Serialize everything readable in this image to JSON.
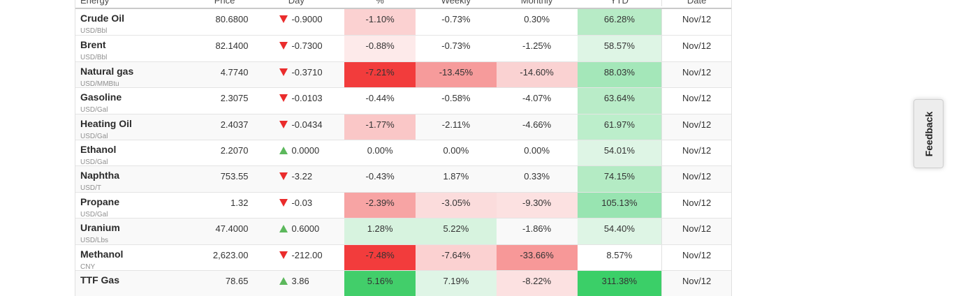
{
  "table": {
    "category": "Energy",
    "columns": [
      "Energy",
      "Price",
      "Day",
      "%",
      "Weekly",
      "Monthly",
      "YTD",
      "Date"
    ],
    "rows": [
      {
        "name": "Crude Oil",
        "unit": "USD/Bbl",
        "price": "80.6800",
        "dir": "down",
        "change": "-0.9000",
        "pct": "-1.10%",
        "weekly": "-0.73%",
        "monthly": "0.30%",
        "ytd": "66.28%",
        "date": "Nov/12",
        "bg": {
          "pct": "#fbd1d1",
          "ytd": "#b7ebc6"
        }
      },
      {
        "name": "Brent",
        "unit": "USD/Bbl",
        "price": "82.1400",
        "dir": "down",
        "change": "-0.7300",
        "pct": "-0.88%",
        "weekly": "-0.73%",
        "monthly": "-1.25%",
        "ytd": "58.57%",
        "date": "Nov/12",
        "bg": {
          "pct": "#fdeaea",
          "ytd": "#def5e5"
        }
      },
      {
        "name": "Natural gas",
        "unit": "USD/MMBtu",
        "price": "4.7740",
        "dir": "down",
        "change": "-0.3710",
        "pct": "-7.21%",
        "weekly": "-13.45%",
        "monthly": "-14.60%",
        "ytd": "88.03%",
        "date": "Nov/12",
        "bg": {
          "pct": "#f23c3c",
          "weekly": "#f69b9b",
          "monthly": "#fad2d2",
          "ytd": "#a4e7b9"
        }
      },
      {
        "name": "Gasoline",
        "unit": "USD/Gal",
        "price": "2.3075",
        "dir": "down",
        "change": "-0.0103",
        "pct": "-0.44%",
        "weekly": "-0.58%",
        "monthly": "-4.07%",
        "ytd": "63.64%",
        "date": "Nov/12",
        "bg": {
          "ytd": "#b9ecc8"
        }
      },
      {
        "name": "Heating Oil",
        "unit": "USD/Gal",
        "price": "2.4037",
        "dir": "down",
        "change": "-0.0434",
        "pct": "-1.77%",
        "weekly": "-2.11%",
        "monthly": "-4.66%",
        "ytd": "61.97%",
        "date": "Nov/12",
        "bg": {
          "pct": "#fac7c7",
          "ytd": "#bceecb"
        }
      },
      {
        "name": "Ethanol",
        "unit": "USD/Gal",
        "price": "2.2070",
        "dir": "up",
        "change": "0.0000",
        "pct": "0.00%",
        "weekly": "0.00%",
        "monthly": "0.00%",
        "ytd": "54.01%",
        "date": "Nov/12",
        "bg": {
          "ytd": "#def5e5"
        }
      },
      {
        "name": "Naphtha",
        "unit": "USD/T",
        "price": "753.55",
        "dir": "down",
        "change": "-3.22",
        "pct": "-0.43%",
        "weekly": "1.87%",
        "monthly": "0.33%",
        "ytd": "74.15%",
        "date": "Nov/12",
        "bg": {
          "ytd": "#b4ebc4"
        }
      },
      {
        "name": "Propane",
        "unit": "USD/Gal",
        "price": "1.32",
        "dir": "down",
        "change": "-0.03",
        "pct": "-2.39%",
        "weekly": "-3.05%",
        "monthly": "-9.30%",
        "ytd": "105.13%",
        "date": "Nov/12",
        "bg": {
          "pct": "#f7a4a4",
          "weekly": "#fbdcdc",
          "monthly": "#fce1e1",
          "ytd": "#98e4b1"
        }
      },
      {
        "name": "Uranium",
        "unit": "USD/Lbs",
        "price": "47.4000",
        "dir": "up",
        "change": "0.6000",
        "pct": "1.28%",
        "weekly": "5.22%",
        "monthly": "-1.86%",
        "ytd": "54.40%",
        "date": "Nov/12",
        "bg": {
          "pct": "#d7f3df",
          "weekly": "#d7f3df",
          "ytd": "#def5e5"
        }
      },
      {
        "name": "Methanol",
        "unit": "CNY",
        "price": "2,623.00",
        "dir": "down",
        "change": "-212.00",
        "pct": "-7.48%",
        "weekly": "-7.64%",
        "monthly": "-33.66%",
        "ytd": "8.57%",
        "date": "Nov/12",
        "bg": {
          "pct": "#f23c3c",
          "weekly": "#fbd1d1",
          "monthly": "#f79898"
        }
      },
      {
        "name": "TTF Gas",
        "unit": "",
        "price": "78.65",
        "dir": "up",
        "change": "3.86",
        "pct": "5.16%",
        "weekly": "7.19%",
        "monthly": "-8.22%",
        "ytd": "311.38%",
        "date": "Nov/12",
        "bg": {
          "pct": "#42ce6a",
          "weekly": "#dff5e6",
          "monthly": "#fce1e1",
          "ytd": "#3bcf68"
        }
      }
    ]
  },
  "feedback": {
    "label": "Feedback"
  },
  "colors": {
    "triangle_down_red": "#ea2c2c",
    "triangle_up_green": "#5cb85c",
    "strong_loss_bg": "#f23c3c",
    "strong_gain_bg": "#3bcf68",
    "row_stripe": "#f9f9f9",
    "row_border": "#e4e4e4",
    "header_border": "#c9c9c9",
    "feedback_bg": "#ededed"
  }
}
